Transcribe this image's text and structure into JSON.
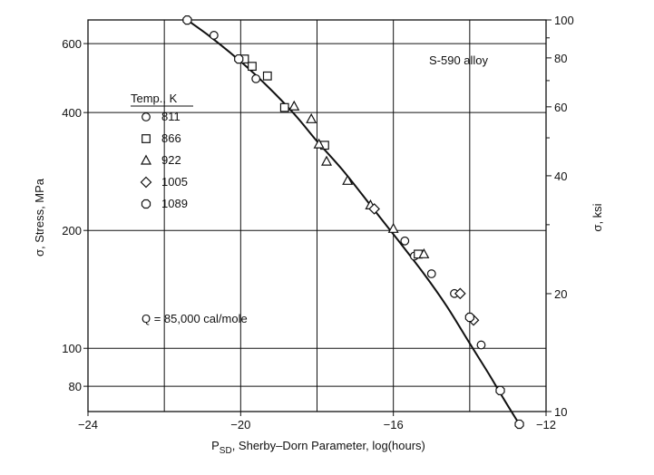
{
  "chart_data": {
    "type": "scatter",
    "title": "",
    "xlabel_main": "P",
    "xlabel_sub": "SD",
    "xlabel_rest": ", Sherby–Dorn Parameter, log(hours)",
    "ylabel_left": "σ, Stress, MPa",
    "ylabel_right": "σ, ksi",
    "xlim": [
      -24,
      -12
    ],
    "ylim_mpa": [
      68.95,
      689.5
    ],
    "ylim_ksi": [
      10,
      100
    ],
    "y_scale": "log",
    "x_ticks": [
      -24,
      -20,
      -16,
      -12
    ],
    "x_tick_labels": [
      "−24",
      "−20",
      "−16",
      "−12"
    ],
    "x_grid": [
      -22,
      -20,
      -18,
      -16,
      -14
    ],
    "y_ticks_left": [
      80,
      100,
      200,
      400,
      600
    ],
    "y_tick_labels_left": [
      "80",
      "100",
      "200",
      "400",
      "600"
    ],
    "y_grid_left": [
      80,
      100,
      200,
      400,
      600
    ],
    "y_ticks_right": [
      10,
      20,
      40,
      60,
      80,
      100
    ],
    "y_tick_labels_right": [
      "10",
      "20",
      "40",
      "60",
      "80",
      "100"
    ],
    "grid": true,
    "legend": {
      "title": "Temp., K",
      "placement": "upper-left",
      "entries": [
        {
          "label": "811",
          "marker": "circle"
        },
        {
          "label": "866",
          "marker": "square"
        },
        {
          "label": "922",
          "marker": "triangle"
        },
        {
          "label": "1005",
          "marker": "diamond"
        },
        {
          "label": "1089",
          "marker": "octagon"
        }
      ]
    },
    "annotations": {
      "alloy": "S-590 alloy",
      "activation": "Q = 85,000 cal/mole"
    },
    "fit_curve": {
      "x": [
        -21.4,
        -20.8,
        -20.0,
        -19.3,
        -18.6,
        -18.0,
        -17.3,
        -16.6,
        -15.9,
        -15.2,
        -14.6,
        -14.0,
        -13.5,
        -13.1,
        -12.7
      ],
      "y": [
        689,
        625,
        540,
        467,
        397,
        338,
        283,
        232,
        190,
        155,
        128,
        103,
        86,
        74,
        64
      ]
    },
    "series": [
      {
        "name": "811",
        "marker": "circle",
        "points": [
          [
            -20.7,
            630
          ],
          [
            -19.6,
            488
          ],
          [
            -15.7,
            188
          ],
          [
            -15.45,
            172
          ],
          [
            -15.0,
            155
          ],
          [
            -14.4,
            138
          ],
          [
            -13.7,
            102
          ]
        ]
      },
      {
        "name": "866",
        "marker": "square",
        "points": [
          [
            -19.9,
            548
          ],
          [
            -19.7,
            525
          ],
          [
            -19.3,
            496
          ],
          [
            -18.85,
            412
          ],
          [
            -17.8,
            330
          ],
          [
            -15.35,
            174
          ]
        ]
      },
      {
        "name": "922",
        "marker": "triangle",
        "points": [
          [
            -18.6,
            415
          ],
          [
            -18.15,
            385
          ],
          [
            -17.95,
            332
          ],
          [
            -17.75,
            300
          ],
          [
            -17.2,
            268
          ],
          [
            -16.6,
            232
          ],
          [
            -16.0,
            202
          ],
          [
            -15.2,
            174
          ]
        ]
      },
      {
        "name": "1005",
        "marker": "diamond",
        "points": [
          [
            -16.5,
            227
          ],
          [
            -14.25,
            138
          ],
          [
            -13.9,
            118
          ]
        ]
      },
      {
        "name": "1089",
        "marker": "octagon",
        "points": [
          [
            -21.4,
            689
          ],
          [
            -20.05,
            548
          ],
          [
            -14.0,
            120
          ],
          [
            -13.2,
            78
          ],
          [
            -12.7,
            64
          ]
        ]
      }
    ]
  }
}
